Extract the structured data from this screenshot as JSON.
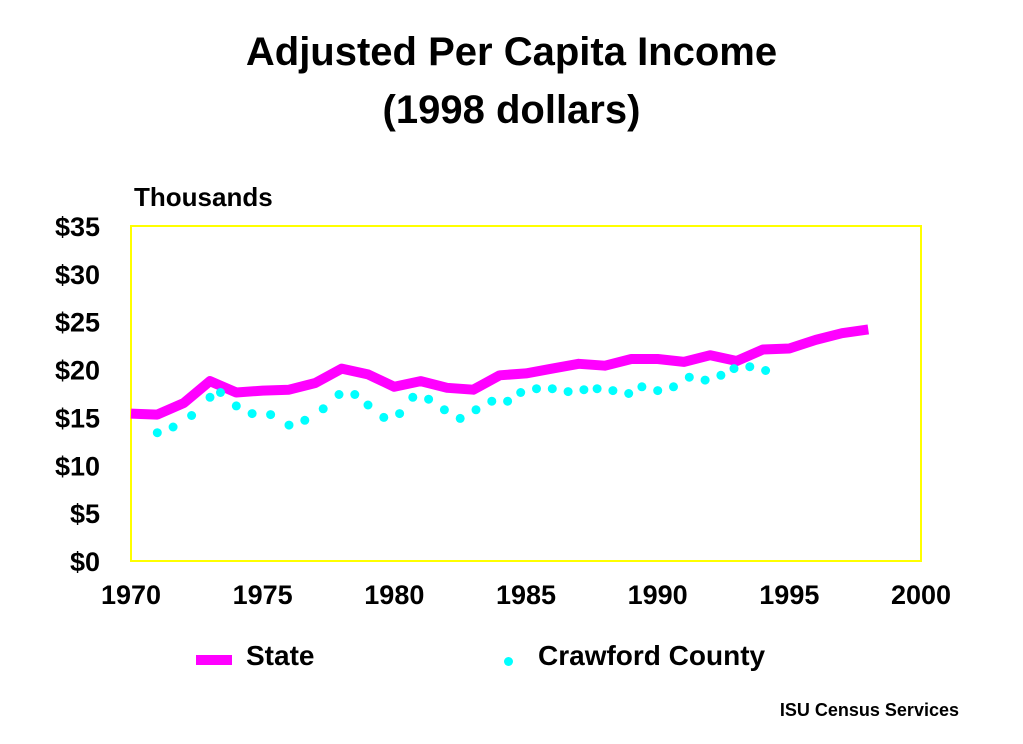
{
  "chart_data": {
    "type": "line",
    "title": "Adjusted Per Capita Income",
    "subtitle": "(1998 dollars)",
    "units_label": "Thousands",
    "xlim": [
      1970,
      2000
    ],
    "ylim": [
      0,
      35
    ],
    "x_ticks": [
      1970,
      1975,
      1980,
      1985,
      1990,
      1995,
      2000
    ],
    "y_ticks": [
      {
        "value": 0,
        "label": "$0"
      },
      {
        "value": 5,
        "label": "$5"
      },
      {
        "value": 10,
        "label": "$10"
      },
      {
        "value": 15,
        "label": "$15"
      },
      {
        "value": 20,
        "label": "$20"
      },
      {
        "value": 25,
        "label": "$25"
      },
      {
        "value": 30,
        "label": "$30"
      },
      {
        "value": 35,
        "label": "$35"
      }
    ],
    "x": [
      1970,
      1971,
      1972,
      1973,
      1974,
      1975,
      1976,
      1977,
      1978,
      1979,
      1980,
      1981,
      1982,
      1983,
      1984,
      1985,
      1986,
      1987,
      1988,
      1989,
      1990,
      1991,
      1992,
      1993,
      1994,
      1995,
      1996,
      1997,
      1998
    ],
    "series": [
      {
        "name": "State",
        "style": "line",
        "color": "#ff00ff",
        "values": [
          15.4,
          15.3,
          16.5,
          18.8,
          17.6,
          17.8,
          17.9,
          18.6,
          20.1,
          19.5,
          18.2,
          18.8,
          18.1,
          17.9,
          19.4,
          19.6,
          20.1,
          20.6,
          20.4,
          21.1,
          21.1,
          20.8,
          21.5,
          20.9,
          22.1,
          22.2,
          23.1,
          23.8,
          24.2
        ]
      },
      {
        "name": "Crawford County",
        "style": "dots",
        "color": "#00ffff",
        "values": [
          13.4,
          14.0,
          15.2,
          17.1,
          17.6,
          16.2,
          15.4,
          15.3,
          14.2,
          14.7,
          15.9,
          17.4,
          17.4,
          16.3,
          15.0,
          15.4,
          17.1,
          16.9,
          15.8,
          14.9,
          15.8,
          16.7,
          16.7,
          17.6,
          18.0,
          18.0,
          17.7,
          17.9,
          18.0,
          17.8,
          17.5,
          18.2,
          17.8,
          18.2,
          19.2,
          18.9,
          19.4,
          20.1,
          20.3,
          19.9
        ],
        "x": [
          1971,
          1971.6,
          1972.3,
          1973.0,
          1973.4,
          1974.0,
          1974.6,
          1975.3,
          1976.0,
          1976.6,
          1977.3,
          1977.9,
          1978.5,
          1979.0,
          1979.6,
          1980.2,
          1980.7,
          1981.3,
          1981.9,
          1982.5,
          1983.1,
          1983.7,
          1984.3,
          1984.8,
          1985.4,
          1986.0,
          1986.6,
          1987.2,
          1987.7,
          1988.3,
          1988.9,
          1989.4,
          1990.0,
          1990.6,
          1991.2,
          1991.8,
          1992.4,
          1992.9,
          1993.5,
          1994.1
        ]
      }
    ],
    "grid": false,
    "frame_color": "#ffff00",
    "legend_position": "bottom"
  },
  "source": "ISU Census Services"
}
